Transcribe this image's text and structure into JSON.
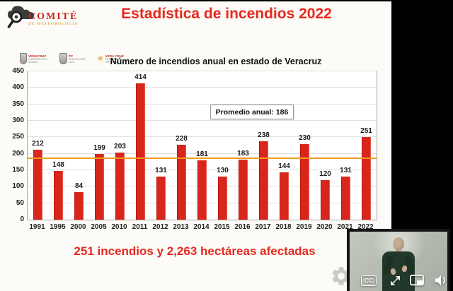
{
  "slide": {
    "logo": {
      "title": "COMITÉ",
      "subtitle": "DE METEOROLOGÍA"
    },
    "title": "Estadística de incendios 2022",
    "partner_logos": [
      {
        "label": "VERACRUZ",
        "sub": "GOBIERNO DEL ESTADO"
      },
      {
        "label": "PC",
        "sub": "PROTECCIÓN CIVIL"
      },
      {
        "label": "VERA CRUZ",
        "sub": "ESTADO DE VERACRUZ"
      }
    ],
    "footer": "251 incendios y 2,263 hectáreas afectadas"
  },
  "chart_data": {
    "type": "bar",
    "title": "Número de incendios anual en estado de Veracruz",
    "categories": [
      "1991",
      "1995",
      "2000",
      "2005",
      "2010",
      "2011",
      "2012",
      "2013",
      "2014",
      "2015",
      "2016",
      "2017",
      "2018",
      "2019",
      "2020",
      "2021",
      "2022"
    ],
    "values": [
      212,
      148,
      84,
      199,
      203,
      414,
      131,
      228,
      181,
      130,
      183,
      238,
      144,
      230,
      120,
      131,
      251
    ],
    "xlabel": "",
    "ylabel": "",
    "ylim": [
      0,
      450
    ],
    "ytick_step": 50,
    "grid": true,
    "legend": "none",
    "bar_color": "#d9261c",
    "average_line": {
      "value": 186,
      "label": "Promedio anual: 186",
      "color": "#f29c1f"
    }
  },
  "player": {
    "cc_label": "CC",
    "controls": [
      "settings-gear",
      "closed-captions",
      "fullscreen-expand",
      "picture-in-picture",
      "volume"
    ]
  },
  "colors": {
    "title_red": "#e6291f",
    "slide_bg": "#fcfbf7",
    "letterbox": "#000000"
  }
}
